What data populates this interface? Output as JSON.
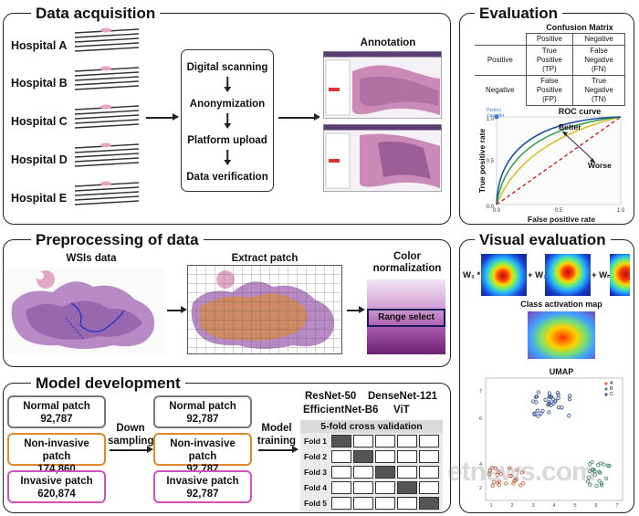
{
  "acquisition": {
    "title": "Data acquisition",
    "hospitals": [
      "Hospital A",
      "Hospital B",
      "Hospital C",
      "Hospital D",
      "Hospital E"
    ],
    "steps": [
      "Digital scanning",
      "Anonymization",
      "Platform upload",
      "Data verification"
    ],
    "annotation_label": "Annotation"
  },
  "evaluation": {
    "title": "Evaluation",
    "cm_title": "Confusion Matrix",
    "cm_col_headers": [
      "Positive",
      "Negative"
    ],
    "cm_rows": [
      {
        "label": "Positive",
        "cells": [
          "True\nPositive\n(TP)",
          "False\nNegative\n(FN)"
        ]
      },
      {
        "label": "Negative",
        "cells": [
          "False\nPositive\n(FP)",
          "True\nNegative\n(TN)"
        ]
      }
    ],
    "roc_title": "ROC curve",
    "roc_xlabel": "False positive rate",
    "roc_ylabel": "True positive rate",
    "roc_perfect": "Perfect classifier",
    "roc_better": "Better",
    "roc_worse": "Worse"
  },
  "preprocessing": {
    "title": "Preprocessing of data",
    "wsi_label": "WSIs data",
    "patch_label": "Extract patch",
    "color_label": "Color normalization",
    "range_select": "Range select"
  },
  "visual": {
    "title": "Visual evaluation",
    "w1": "W₁ *",
    "w2": "+ W₂*",
    "wn": "+ Wₙ*",
    "cam_label": "Class activation map",
    "umap_title": "UMAP",
    "legend": [
      "A",
      "B",
      "C"
    ]
  },
  "model": {
    "title": "Model development",
    "left": [
      {
        "name": "Normal patch",
        "count": "92,787"
      },
      {
        "name": "Non-invasive patch",
        "count": "174,860"
      },
      {
        "name": "Invasive patch",
        "count": "620,874"
      }
    ],
    "right": [
      {
        "name": "Normal patch",
        "count": "92,787"
      },
      {
        "name": "Non-invasive patch",
        "count": "92,787"
      },
      {
        "name": "Invasive patch",
        "count": "92,787"
      }
    ],
    "down_sampling": "Down sampling",
    "model_training": "Model training",
    "models_line1a": "ResNet-50",
    "models_line1b": "DenseNet-121",
    "models_line2a": "EfficientNet-B6",
    "models_line2b": "ViT",
    "cv_title": "5-fold cross validation",
    "folds": [
      "Fold 1",
      "Fold 2",
      "Fold 3",
      "Fold 4",
      "Fold 5"
    ]
  },
  "watermark": "etnews.com",
  "colors": {
    "normal_border": "#777777",
    "noninvasive_border": "#e0892a",
    "invasive_border": "#d14fbf",
    "roc_green": "#2e9b4a",
    "roc_yellow": "#d4c020",
    "roc_blue": "#1b4fa0",
    "roc_red": "#d01010"
  }
}
